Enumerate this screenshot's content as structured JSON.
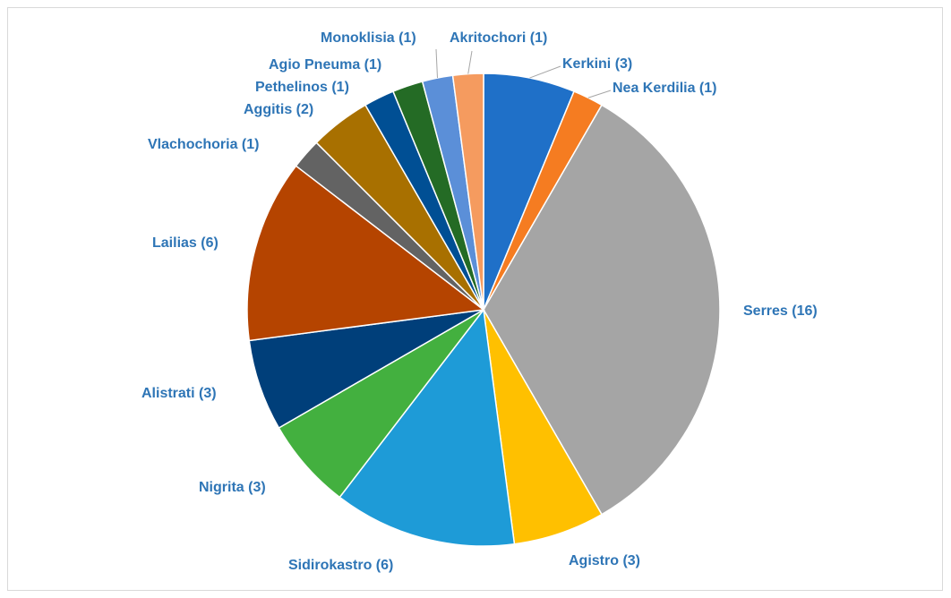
{
  "chart_data": {
    "type": "pie",
    "categories": [
      "Kerkini (3)",
      "Nea Kerdilia (1)",
      "Serres (16)",
      "Agistro (3)",
      "Sidirokastro (6)",
      "Nigrita (3)",
      "Alistrati (3)",
      "Lailias (6)",
      "Vlachochoria (1)",
      "Aggitis (2)",
      "Pethelinos (1)",
      "Agio Pneuma (1)",
      "Monoklisia (1)",
      "Akritochori (1)"
    ],
    "values": [
      3,
      1,
      16,
      3,
      6,
      3,
      3,
      6,
      1,
      2,
      1,
      1,
      1,
      1
    ],
    "colors": [
      "#1f70c8",
      "#f57c21",
      "#a5a5a5",
      "#ffc000",
      "#1e9bd7",
      "#43b03f",
      "#003f7a",
      "#b54400",
      "#636363",
      "#a87000",
      "#004f94",
      "#246b25",
      "#5b8fd8",
      "#f59b5f"
    ]
  }
}
